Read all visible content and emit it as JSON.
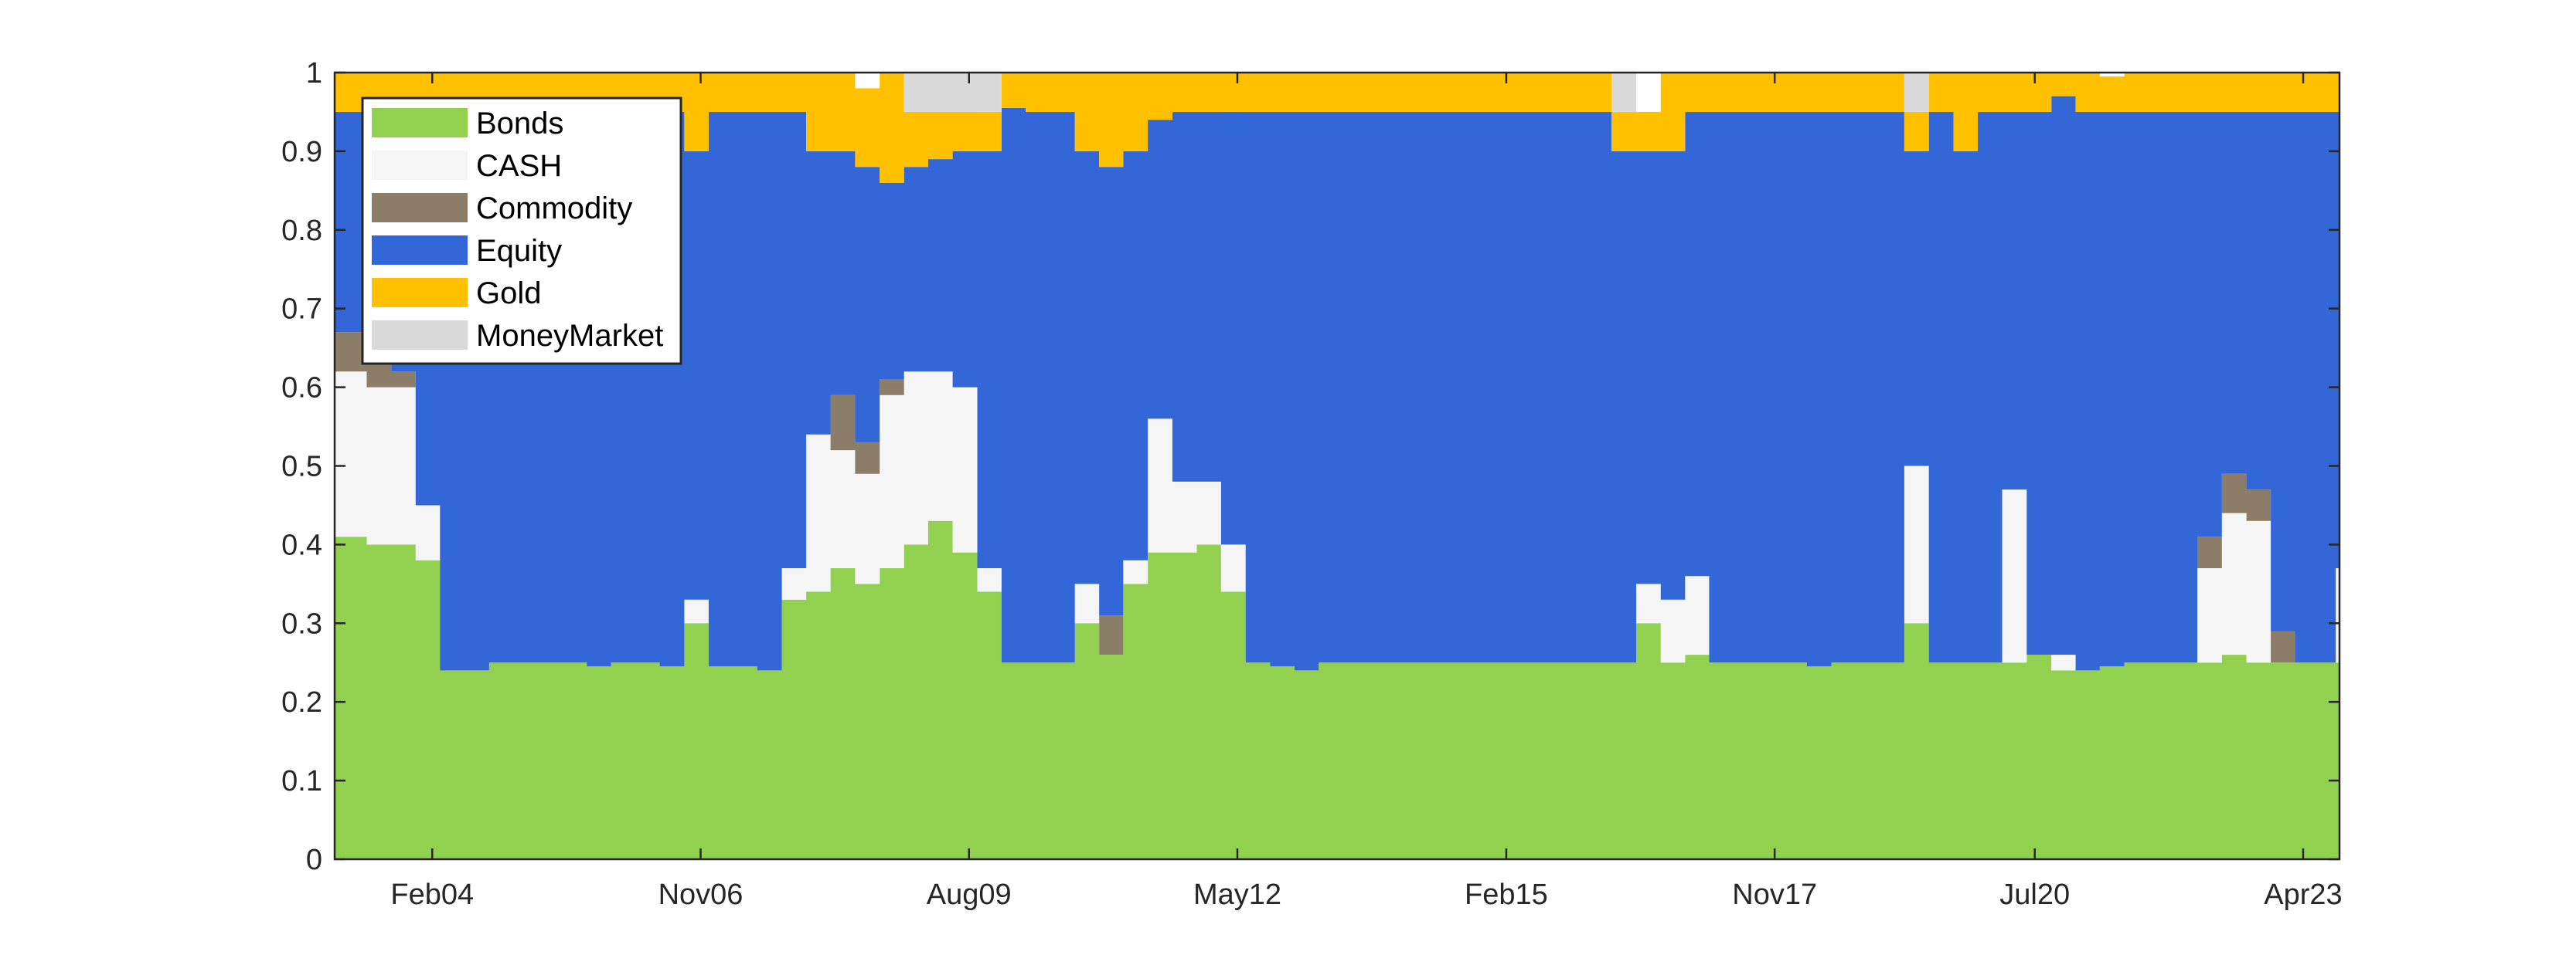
{
  "chart_data": {
    "type": "area",
    "stacked": true,
    "normalized": true,
    "title": "",
    "xlabel": "",
    "ylabel": "",
    "ylim": [
      0,
      1
    ],
    "xlim": [
      "2003-02-01",
      "2023-08-15"
    ],
    "y_ticks": [
      0,
      0.1,
      0.2,
      0.3,
      0.4,
      0.5,
      0.6,
      0.7,
      0.8,
      0.9,
      1
    ],
    "y_tick_labels": [
      "0",
      "0.1",
      "0.2",
      "0.3",
      "0.4",
      "0.5",
      "0.6",
      "0.7",
      "0.8",
      "0.9",
      "1"
    ],
    "x_ticks": [
      {
        "date": "2004-02-01",
        "label": "Feb04"
      },
      {
        "date": "2006-11-01",
        "label": "Nov06"
      },
      {
        "date": "2009-08-01",
        "label": "Aug09"
      },
      {
        "date": "2012-05-01",
        "label": "May12"
      },
      {
        "date": "2015-02-01",
        "label": "Feb15"
      },
      {
        "date": "2017-11-01",
        "label": "Nov17"
      },
      {
        "date": "2020-07-01",
        "label": "Jul20"
      },
      {
        "date": "2023-04-01",
        "label": "Apr23"
      }
    ],
    "legend_position": "top-left",
    "grid": false,
    "colors": {
      "Bonds": "#92d050",
      "CASH": "#f5f5f5",
      "Commodity": "#8b7d67",
      "Equity": "#3366d6",
      "Gold": "#ffc000",
      "MoneyMarket": "#d9d9d9"
    },
    "x": [
      "2003-02",
      "2003-06",
      "2003-09",
      "2003-12",
      "2004-03",
      "2004-06",
      "2004-09",
      "2004-12",
      "2005-03",
      "2005-06",
      "2005-09",
      "2005-12",
      "2006-03",
      "2006-06",
      "2006-09",
      "2006-12",
      "2007-03",
      "2007-06",
      "2007-09",
      "2007-12",
      "2008-03",
      "2008-06",
      "2008-09",
      "2008-12",
      "2009-03",
      "2009-06",
      "2009-09",
      "2009-12",
      "2010-03",
      "2010-06",
      "2010-09",
      "2010-12",
      "2011-03",
      "2011-06",
      "2011-09",
      "2011-12",
      "2012-03",
      "2012-06",
      "2012-09",
      "2012-12",
      "2013-03",
      "2013-06",
      "2013-09",
      "2013-12",
      "2014-03",
      "2014-06",
      "2014-09",
      "2014-12",
      "2015-03",
      "2015-06",
      "2015-09",
      "2015-12",
      "2016-03",
      "2016-06",
      "2016-09",
      "2016-12",
      "2017-03",
      "2017-06",
      "2017-09",
      "2017-12",
      "2018-03",
      "2018-06",
      "2018-09",
      "2018-12",
      "2019-03",
      "2019-06",
      "2019-09",
      "2019-12",
      "2020-03",
      "2020-06",
      "2020-09",
      "2020-12",
      "2021-03",
      "2021-06",
      "2021-09",
      "2021-12",
      "2022-03",
      "2022-06",
      "2022-09",
      "2022-12",
      "2023-03",
      "2023-06",
      "2023-08"
    ],
    "series": [
      {
        "name": "Bonds",
        "values": [
          0.41,
          0.4,
          0.4,
          0.38,
          0.24,
          0.24,
          0.25,
          0.25,
          0.25,
          0.25,
          0.245,
          0.25,
          0.25,
          0.245,
          0.3,
          0.245,
          0.245,
          0.24,
          0.33,
          0.34,
          0.37,
          0.35,
          0.37,
          0.4,
          0.43,
          0.39,
          0.34,
          0.25,
          0.25,
          0.25,
          0.3,
          0.26,
          0.35,
          0.39,
          0.39,
          0.4,
          0.34,
          0.25,
          0.245,
          0.24,
          0.25,
          0.25,
          0.25,
          0.25,
          0.25,
          0.25,
          0.25,
          0.25,
          0.25,
          0.25,
          0.25,
          0.25,
          0.25,
          0.3,
          0.25,
          0.26,
          0.25,
          0.25,
          0.25,
          0.25,
          0.245,
          0.25,
          0.25,
          0.25,
          0.3,
          0.25,
          0.25,
          0.25,
          0.25,
          0.26,
          0.24,
          0.24,
          0.245,
          0.25,
          0.25,
          0.25,
          0.25,
          0.26,
          0.25,
          0.25,
          0.25,
          0.25,
          0.25
        ]
      },
      {
        "name": "CASH",
        "values": [
          0.21,
          0.2,
          0.2,
          0.07,
          0,
          0,
          0,
          0,
          0,
          0,
          0,
          0,
          0,
          0,
          0.03,
          0,
          0,
          0,
          0.04,
          0.2,
          0.15,
          0.14,
          0.22,
          0.22,
          0.19,
          0.21,
          0.03,
          0,
          0,
          0,
          0.05,
          0,
          0.03,
          0.17,
          0.09,
          0.08,
          0.06,
          0,
          0,
          0,
          0,
          0,
          0,
          0,
          0,
          0,
          0,
          0,
          0,
          0,
          0,
          0,
          0,
          0.05,
          0.08,
          0.1,
          0,
          0,
          0,
          0,
          0,
          0,
          0,
          0,
          0.2,
          0,
          0,
          0,
          0.22,
          0,
          0.02,
          0,
          0,
          0,
          0,
          0,
          0.12,
          0.18,
          0.18,
          0,
          0,
          0,
          0.12
        ]
      },
      {
        "name": "Commodity",
        "values": [
          0.05,
          0.04,
          0.02,
          0,
          0,
          0,
          0,
          0,
          0,
          0,
          0,
          0,
          0,
          0,
          0,
          0,
          0,
          0,
          0,
          0,
          0.07,
          0.04,
          0.02,
          0,
          0,
          0,
          0,
          0,
          0,
          0,
          0,
          0.05,
          0,
          0,
          0,
          0,
          0,
          0,
          0,
          0,
          0,
          0,
          0,
          0,
          0,
          0,
          0,
          0,
          0,
          0,
          0,
          0,
          0,
          0,
          0,
          0,
          0,
          0,
          0,
          0,
          0,
          0,
          0,
          0,
          0,
          0,
          0,
          0,
          0,
          0,
          0,
          0,
          0,
          0,
          0,
          0,
          0.04,
          0.05,
          0.04,
          0.04,
          0,
          0,
          0
        ]
      },
      {
        "name": "Equity",
        "values": [
          0.28,
          0.31,
          0.33,
          0.5,
          0.71,
          0.71,
          0.7,
          0.7,
          0.7,
          0.7,
          0.705,
          0.7,
          0.7,
          0.705,
          0.57,
          0.705,
          0.705,
          0.71,
          0.58,
          0.36,
          0.31,
          0.35,
          0.25,
          0.26,
          0.27,
          0.3,
          0.53,
          0.705,
          0.7,
          0.7,
          0.55,
          0.57,
          0.52,
          0.38,
          0.47,
          0.47,
          0.55,
          0.7,
          0.705,
          0.71,
          0.7,
          0.7,
          0.7,
          0.7,
          0.7,
          0.7,
          0.7,
          0.7,
          0.7,
          0.7,
          0.7,
          0.7,
          0.65,
          0.55,
          0.57,
          0.59,
          0.7,
          0.7,
          0.7,
          0.7,
          0.705,
          0.7,
          0.7,
          0.7,
          0.4,
          0.7,
          0.65,
          0.7,
          0.48,
          0.69,
          0.71,
          0.71,
          0.705,
          0.7,
          0.7,
          0.7,
          0.54,
          0.46,
          0.48,
          0.66,
          0.7,
          0.7,
          0.58
        ]
      },
      {
        "name": "Gold",
        "values": [
          0.05,
          0.05,
          0.05,
          0.05,
          0.05,
          0.05,
          0.05,
          0.05,
          0.05,
          0.05,
          0.05,
          0.05,
          0.05,
          0.05,
          0.1,
          0.05,
          0.05,
          0.05,
          0.05,
          0.1,
          0.1,
          0.1,
          0.14,
          0.07,
          0.06,
          0.05,
          0.05,
          0.045,
          0.05,
          0.05,
          0.1,
          0.12,
          0.1,
          0.06,
          0.05,
          0.05,
          0.05,
          0.05,
          0.05,
          0.05,
          0.05,
          0.05,
          0.05,
          0.05,
          0.05,
          0.05,
          0.05,
          0.05,
          0.05,
          0.05,
          0.05,
          0.05,
          0.05,
          0.05,
          0.1,
          0.05,
          0.05,
          0.05,
          0.05,
          0.05,
          0.05,
          0.05,
          0.05,
          0.05,
          0.05,
          0.05,
          0.1,
          0.05,
          0.05,
          0.05,
          0.05,
          0.05,
          0.045,
          0.05,
          0.05,
          0.05,
          0.05,
          0.05,
          0.05,
          0.05,
          0.05,
          0.05,
          0.05
        ]
      },
      {
        "name": "MoneyMarket",
        "values": [
          0,
          0,
          0,
          0,
          0,
          0,
          0,
          0,
          0,
          0,
          0,
          0,
          0,
          0,
          0,
          0,
          0,
          0,
          0,
          0,
          0,
          0,
          0,
          0.05,
          0.05,
          0.05,
          0.05,
          0,
          0,
          0,
          0,
          0,
          0,
          0,
          0,
          0,
          0,
          0,
          0,
          0,
          0,
          0,
          0,
          0,
          0,
          0,
          0,
          0,
          0,
          0,
          0,
          0,
          0.05,
          0,
          0,
          0,
          0,
          0,
          0,
          0,
          0,
          0,
          0,
          0,
          0.05,
          0,
          0,
          0,
          0,
          0,
          0,
          0,
          0,
          0,
          0,
          0,
          0,
          0,
          0,
          0,
          0,
          0,
          0
        ]
      }
    ]
  }
}
